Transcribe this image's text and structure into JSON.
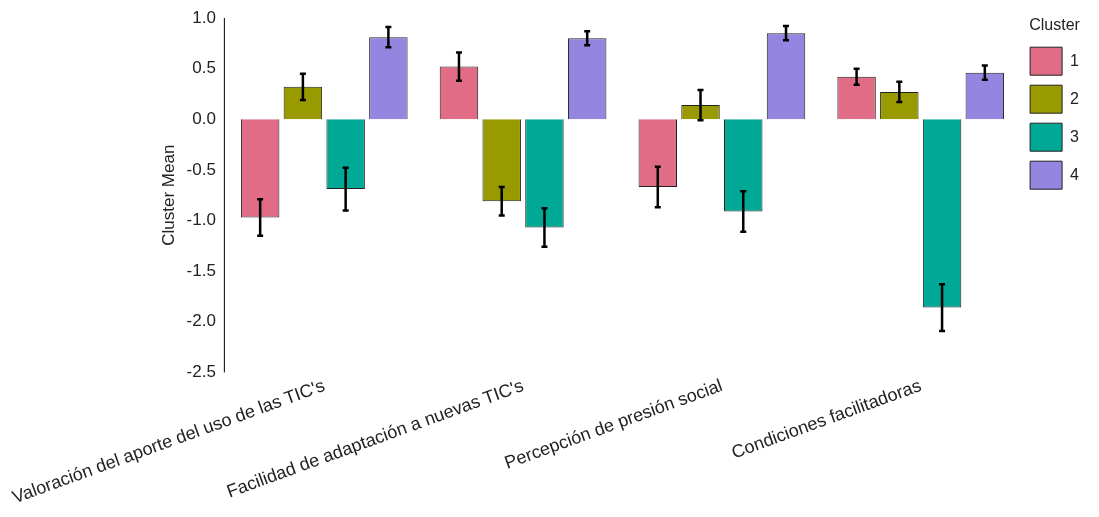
{
  "chart_data": {
    "type": "bar",
    "ylabel": "Cluster Mean",
    "categories": [
      "Valoración del aporte del uso de las TIC's",
      "Facilidad de adaptación a nuevas TIC's",
      "Percepción de presión social",
      "Condiciones facilitadoras"
    ],
    "series": [
      {
        "name": "1",
        "color": "#e06c85",
        "values": [
          -0.97,
          0.52,
          -0.67,
          0.42
        ],
        "errors": [
          0.18,
          0.14,
          0.2,
          0.08
        ]
      },
      {
        "name": "2",
        "color": "#999900",
        "values": [
          0.32,
          -0.81,
          0.14,
          0.27
        ],
        "errors": [
          0.13,
          0.14,
          0.15,
          0.1
        ]
      },
      {
        "name": "3",
        "color": "#00a896",
        "values": [
          -0.69,
          -1.07,
          -0.91,
          -1.86
        ],
        "errors": [
          0.21,
          0.19,
          0.2,
          0.23
        ]
      },
      {
        "name": "4",
        "color": "#9485e0",
        "values": [
          0.81,
          0.8,
          0.85,
          0.46
        ],
        "errors": [
          0.1,
          0.07,
          0.07,
          0.07
        ]
      }
    ],
    "ylim": [
      -2.5,
      1.0
    ],
    "yticks": [
      -2.5,
      {
        "value": -2,
        "label": "-2.0"
      },
      -1.5,
      {
        "value": -1,
        "label": "-1.0"
      },
      -0.5,
      {
        "value": 0,
        "label": "0.0"
      },
      0.5,
      {
        "value": 1,
        "label": "1.0"
      }
    ],
    "legend_title": "Cluster",
    "legend": "right",
    "grid": false
  }
}
